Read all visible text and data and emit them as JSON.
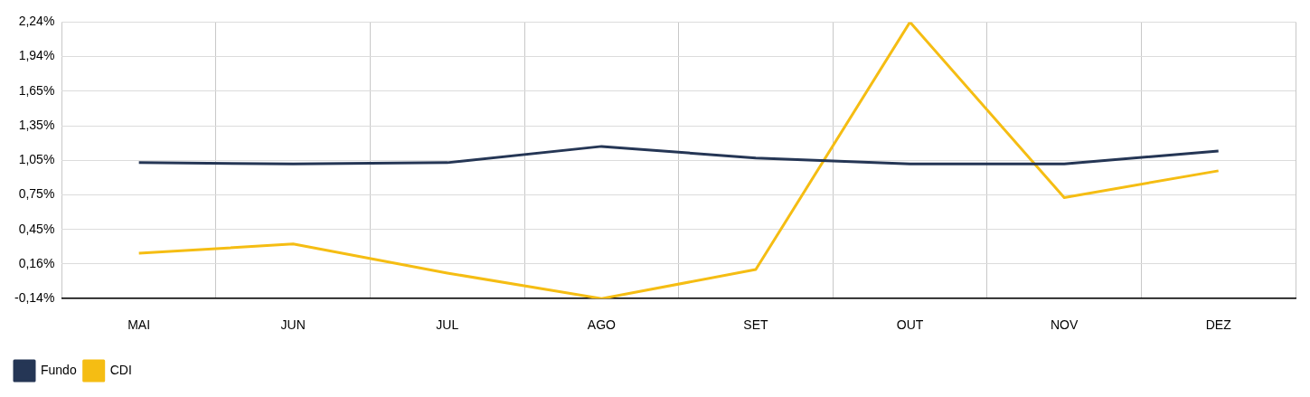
{
  "chart_data": {
    "type": "line",
    "categories": [
      "MAI",
      "JUN",
      "JUL",
      "AGO",
      "SET",
      "OUT",
      "NOV",
      "DEZ"
    ],
    "series": [
      {
        "name": "Fundo",
        "color": "#253655",
        "values": [
          1.03,
          1.02,
          1.03,
          1.17,
          1.07,
          1.02,
          1.02,
          1.13
        ]
      },
      {
        "name": "CDI",
        "color": "#f5bd13",
        "values": [
          0.25,
          0.33,
          0.08,
          -0.14,
          0.11,
          2.24,
          0.73,
          0.96
        ]
      }
    ],
    "ylim": [
      -0.14,
      2.24
    ],
    "yticks": [
      {
        "value": -0.14,
        "label": "-0,14%"
      },
      {
        "value": 0.1575,
        "label": "0,16%"
      },
      {
        "value": 0.455,
        "label": "0,45%"
      },
      {
        "value": 0.7525,
        "label": "0,75%"
      },
      {
        "value": 1.05,
        "label": "1,05%"
      },
      {
        "value": 1.3475,
        "label": "1,35%"
      },
      {
        "value": 1.645,
        "label": "1,65%"
      },
      {
        "value": 1.9425,
        "label": "1,94%"
      },
      {
        "value": 2.24,
        "label": "2,24%"
      }
    ],
    "grid": true,
    "legend": "bottom left",
    "marker": "none",
    "line_style": "solid"
  }
}
